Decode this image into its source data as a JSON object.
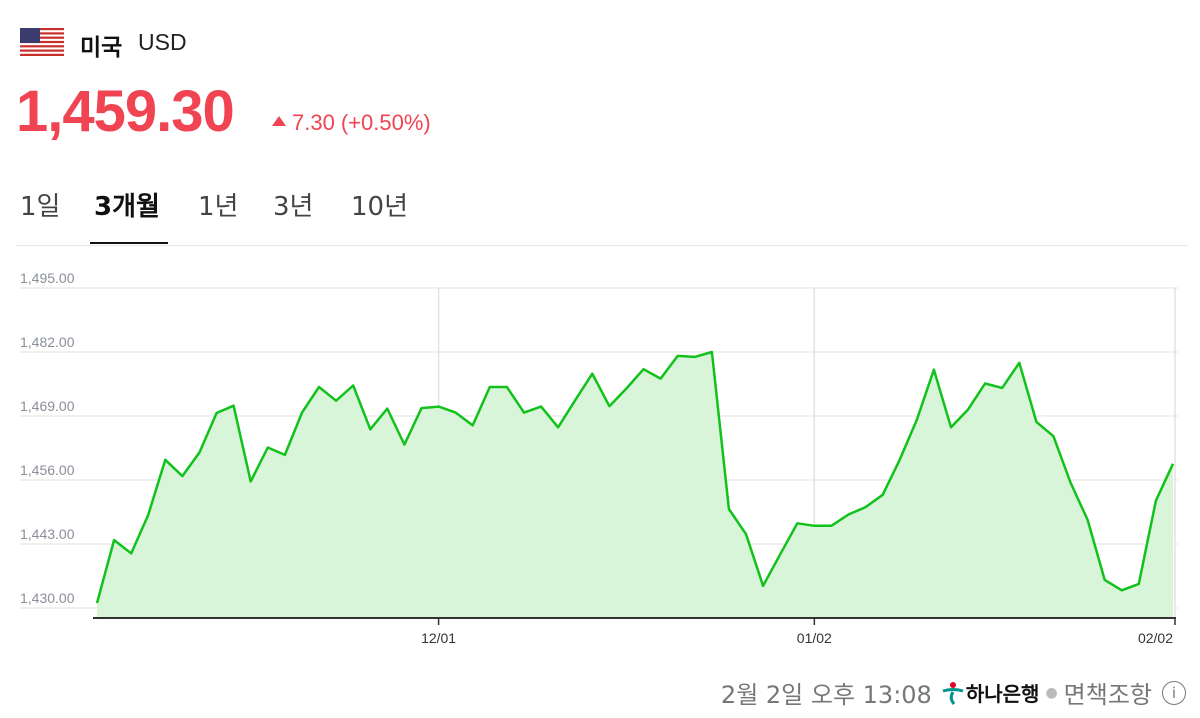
{
  "header": {
    "country": "미국",
    "currency": "USD",
    "flag_icon": "us-flag-icon"
  },
  "quote": {
    "price": "1,459.30",
    "change": "7.30",
    "change_pct": "(+0.50%)",
    "direction": "up",
    "color": "#f04452"
  },
  "tabs": [
    {
      "label": "1일",
      "active": false
    },
    {
      "label": "3개월",
      "active": true
    },
    {
      "label": "1년",
      "active": false
    },
    {
      "label": "3년",
      "active": false
    },
    {
      "label": "10년",
      "active": false
    }
  ],
  "chart_data": {
    "type": "area",
    "color": "#11c21b",
    "fill": "#d9f5d9",
    "ylim": [
      1430,
      1495
    ],
    "yticks": [
      "1,430.00",
      "1,443.00",
      "1,456.00",
      "1,469.00",
      "1,482.00",
      "1,495.00"
    ],
    "ytick_values": [
      1430,
      1443,
      1456,
      1469,
      1482,
      1495
    ],
    "xticks": [
      {
        "label": "12/01",
        "index": 20
      },
      {
        "label": "01/02",
        "index": 42
      },
      {
        "label": "02/02",
        "index": 63
      }
    ],
    "grid": true,
    "values": [
      1431.0,
      1443.8,
      1441.1,
      1448.9,
      1460.1,
      1456.8,
      1461.6,
      1469.6,
      1471.1,
      1455.7,
      1462.6,
      1461.1,
      1469.7,
      1474.9,
      1472.1,
      1475.2,
      1466.3,
      1470.5,
      1463.2,
      1470.6,
      1470.9,
      1469.7,
      1467.1,
      1474.9,
      1474.9,
      1469.7,
      1470.9,
      1466.7,
      1472.2,
      1477.6,
      1471.0,
      1474.6,
      1478.5,
      1476.6,
      1481.2,
      1481.0,
      1482.0,
      1450.1,
      1445.0,
      1434.5,
      1440.9,
      1447.2,
      1446.7,
      1446.7,
      1449.0,
      1450.5,
      1453.0,
      1460.1,
      1468.2,
      1478.4,
      1466.7,
      1470.3,
      1475.6,
      1474.7,
      1479.8,
      1467.8,
      1464.9,
      1455.5,
      1447.9,
      1435.7,
      1433.6,
      1434.9,
      1451.8,
      1459.3
    ]
  },
  "footer": {
    "timestamp": "2월 2일 오후 13:08",
    "source": "하나은행",
    "disclaimer": "면책조항",
    "info_icon": "i"
  }
}
